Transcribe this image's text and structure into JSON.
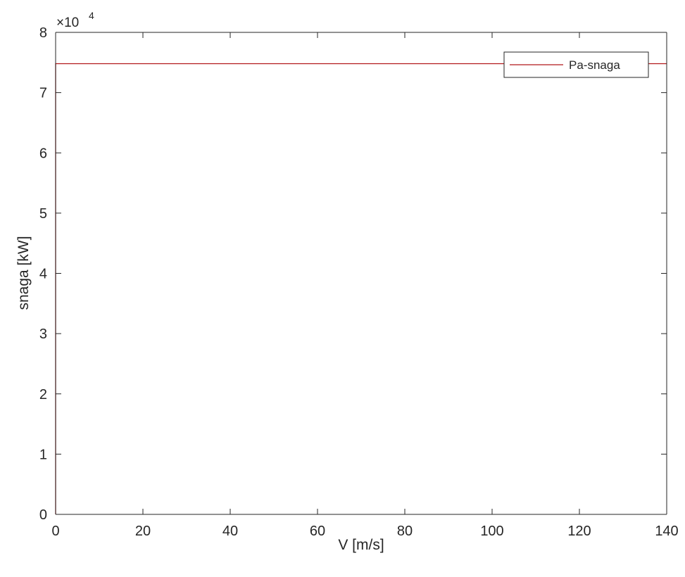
{
  "chart_data": {
    "type": "line",
    "title": "",
    "xlabel": "V [m/s]",
    "ylabel": "snaga [kW]",
    "xlim": [
      0,
      140
    ],
    "ylim": [
      0,
      80000
    ],
    "y_exponent_label": {
      "base": "×10",
      "power": "4"
    },
    "x_ticks": [
      0,
      20,
      40,
      60,
      80,
      100,
      120,
      140
    ],
    "x_tick_labels": [
      "0",
      "20",
      "40",
      "60",
      "80",
      "100",
      "120",
      "140"
    ],
    "y_ticks": [
      0,
      10000,
      20000,
      30000,
      40000,
      50000,
      60000,
      70000,
      80000
    ],
    "y_tick_labels": [
      "0",
      "1",
      "2",
      "3",
      "4",
      "5",
      "6",
      "7",
      "8"
    ],
    "grid": false,
    "legend": {
      "position": "top-right"
    },
    "series": [
      {
        "name": "Pa-snaga",
        "color": "#b2181b",
        "x": [
          0,
          0,
          140
        ],
        "y": [
          0,
          74800,
          74800
        ]
      }
    ]
  }
}
